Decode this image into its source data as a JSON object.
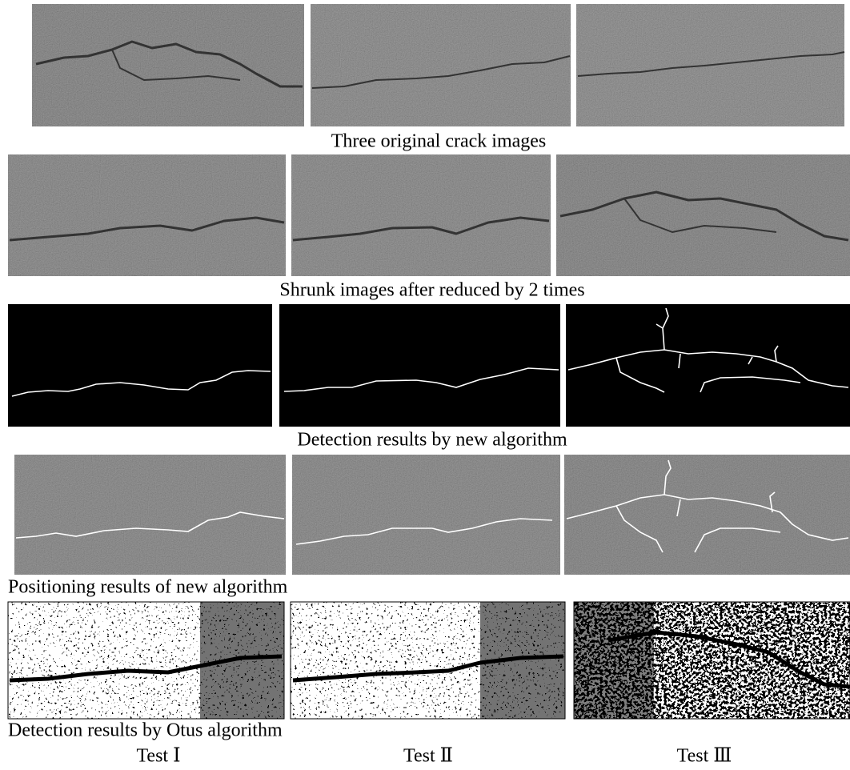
{
  "captions": [
    "Three original crack images",
    "Shrunk images after reduced by 2 times",
    "Detection results by new algorithm",
    "Positioning results of new algorithm",
    "Detection results by Otus algorithm"
  ],
  "tests": [
    "Test Ⅰ",
    "Test Ⅱ",
    "Test Ⅲ"
  ]
}
